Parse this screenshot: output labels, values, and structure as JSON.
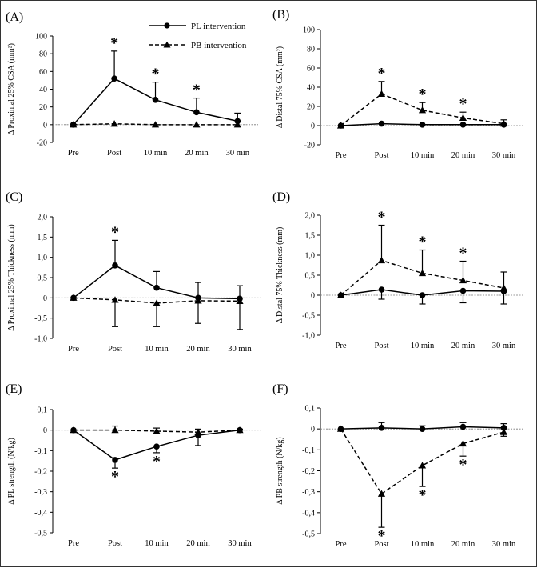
{
  "legend": {
    "pl": {
      "label": "PL intervention",
      "style": "solid",
      "marker": "circle"
    },
    "pb": {
      "label": "PB intervention",
      "style": "dashed",
      "marker": "triangle"
    }
  },
  "chart_data": [
    {
      "type": "line",
      "panel": "(A)",
      "categories": [
        "Pre",
        "Post",
        "10 min",
        "20 min",
        "30 min"
      ],
      "ylabel": "Δ Proximal 25% CSA (mm²)",
      "ylim": [
        -20,
        100
      ],
      "yticks": [
        -20,
        0,
        20,
        40,
        60,
        80,
        100
      ],
      "series": [
        {
          "name": "PL intervention",
          "values": [
            0,
            52,
            28,
            14,
            4
          ],
          "err": [
            0,
            31,
            20,
            16,
            9
          ],
          "err_dir": "up"
        },
        {
          "name": "PB intervention",
          "values": [
            0,
            1,
            0,
            0,
            0
          ],
          "err": [
            0,
            0,
            0,
            0,
            0
          ],
          "err_dir": "up"
        }
      ],
      "significance": [
        {
          "series": "PL intervention",
          "index": 1,
          "pos": "above"
        },
        {
          "series": "PL intervention",
          "index": 2,
          "pos": "above"
        },
        {
          "series": "PL intervention",
          "index": 3,
          "pos": "above"
        }
      ]
    },
    {
      "type": "line",
      "panel": "(B)",
      "categories": [
        "Pre",
        "Post",
        "10 min",
        "20 min",
        "30 min"
      ],
      "ylabel": "Δ Distal 75% CSA (mm²)",
      "ylim": [
        -20,
        100
      ],
      "yticks": [
        -20,
        0,
        20,
        40,
        60,
        80,
        100
      ],
      "series": [
        {
          "name": "PL intervention",
          "values": [
            0,
            2,
            1,
            1,
            1
          ],
          "err": [
            0,
            0,
            0,
            0,
            0
          ],
          "err_dir": "up"
        },
        {
          "name": "PB intervention",
          "values": [
            0,
            33,
            16,
            8,
            2
          ],
          "err": [
            0,
            13,
            8,
            6,
            4
          ],
          "err_dir": "up"
        }
      ],
      "significance": [
        {
          "series": "PB intervention",
          "index": 1,
          "pos": "above"
        },
        {
          "series": "PB intervention",
          "index": 2,
          "pos": "above"
        },
        {
          "series": "PB intervention",
          "index": 3,
          "pos": "above"
        }
      ]
    },
    {
      "type": "line",
      "panel": "(C)",
      "categories": [
        "Pre",
        "Post",
        "10 min",
        "20 min",
        "30 min"
      ],
      "ylabel": "Δ Proximal 25% Thickness (mm)",
      "ylim": [
        -1.0,
        2.0
      ],
      "yticks": [
        -1.0,
        -0.5,
        0,
        0.5,
        1.0,
        1.5,
        2.0
      ],
      "tick_labels": [
        "-1,0",
        "-0,5",
        "0",
        "0,5",
        "1,0",
        "1,5",
        "2,0"
      ],
      "series": [
        {
          "name": "PL intervention",
          "values": [
            0,
            0.8,
            0.25,
            0,
            -0.02
          ],
          "err": [
            0,
            0.62,
            0.4,
            0.38,
            0.32
          ],
          "err_dir": "up"
        },
        {
          "name": "PB intervention",
          "values": [
            0,
            -0.05,
            -0.13,
            -0.07,
            -0.08
          ],
          "err": [
            0,
            0.66,
            0.58,
            0.56,
            0.7
          ],
          "err_dir": "down"
        }
      ],
      "significance": [
        {
          "series": "PL intervention",
          "index": 1,
          "pos": "above"
        }
      ]
    },
    {
      "type": "line",
      "panel": "(D)",
      "categories": [
        "Pre",
        "Post",
        "10 min",
        "20 min",
        "30 min"
      ],
      "ylabel": "Δ Distal 75% Thickness (mm)",
      "ylim": [
        -1.0,
        2.0
      ],
      "yticks": [
        -1.0,
        -0.5,
        0,
        0.5,
        1.0,
        1.5,
        2.0
      ],
      "tick_labels": [
        "-1,0",
        "-0,5",
        "0",
        "0,5",
        "1,0",
        "1,5",
        "2,0"
      ],
      "series": [
        {
          "name": "PL intervention",
          "values": [
            0,
            0.14,
            0,
            0.11,
            0.1
          ],
          "err": [
            0,
            0.24,
            0.22,
            0.3,
            0.32
          ],
          "err_dir": "down"
        },
        {
          "name": "PB intervention",
          "values": [
            0,
            0.87,
            0.55,
            0.37,
            0.18
          ],
          "err": [
            0,
            0.88,
            0.58,
            0.48,
            0.4
          ],
          "err_dir": "up"
        }
      ],
      "significance": [
        {
          "series": "PB intervention",
          "index": 1,
          "pos": "above"
        },
        {
          "series": "PB intervention",
          "index": 2,
          "pos": "above"
        },
        {
          "series": "PB intervention",
          "index": 3,
          "pos": "above"
        }
      ]
    },
    {
      "type": "line",
      "panel": "(E)",
      "categories": [
        "Pre",
        "Post",
        "10 min",
        "20 min",
        "30 min"
      ],
      "ylabel": "Δ PL strength (N/kg)",
      "ylim": [
        -0.5,
        0.1
      ],
      "yticks": [
        -0.5,
        -0.4,
        -0.3,
        -0.2,
        -0.1,
        0,
        0.1
      ],
      "tick_labels": [
        "-0,5",
        "-0,4",
        "-0,3",
        "-0,2",
        "-0,1",
        "0",
        "0,1"
      ],
      "series": [
        {
          "name": "PL intervention",
          "values": [
            0,
            -0.145,
            -0.08,
            -0.025,
            0
          ],
          "err": [
            0,
            0.04,
            0.03,
            0.05,
            0.01
          ],
          "err_dir": "down"
        },
        {
          "name": "PB intervention",
          "values": [
            0,
            0,
            -0.005,
            -0.01,
            0
          ],
          "err": [
            0,
            0.02,
            0.015,
            0.015,
            0.005
          ],
          "err_dir": "up"
        }
      ],
      "significance": [
        {
          "series": "PL intervention",
          "index": 1,
          "pos": "below"
        },
        {
          "series": "PL intervention",
          "index": 2,
          "pos": "below"
        }
      ]
    },
    {
      "type": "line",
      "panel": "(F)",
      "categories": [
        "Pre",
        "Post",
        "10 min",
        "20 min",
        "30 min"
      ],
      "ylabel": "Δ PB strength (N/kg)",
      "ylim": [
        -0.5,
        0.1
      ],
      "yticks": [
        -0.5,
        -0.4,
        -0.3,
        -0.2,
        -0.1,
        0,
        0.1
      ],
      "tick_labels": [
        "-0,5",
        "-0,4",
        "-0,3",
        "-0,2",
        "-0,1",
        "0",
        "0,1"
      ],
      "series": [
        {
          "name": "PL intervention",
          "values": [
            0,
            0.005,
            0,
            0.01,
            0.005
          ],
          "err": [
            0,
            0.025,
            0.015,
            0.02,
            0.02
          ],
          "err_dir": "up"
        },
        {
          "name": "PB intervention",
          "values": [
            0,
            -0.31,
            -0.175,
            -0.07,
            -0.015
          ],
          "err": [
            0,
            0.16,
            0.1,
            0.06,
            0.02
          ],
          "err_dir": "down"
        }
      ],
      "significance": [
        {
          "series": "PB intervention",
          "index": 1,
          "pos": "below"
        },
        {
          "series": "PB intervention",
          "index": 2,
          "pos": "below"
        },
        {
          "series": "PB intervention",
          "index": 3,
          "pos": "below"
        }
      ]
    }
  ]
}
